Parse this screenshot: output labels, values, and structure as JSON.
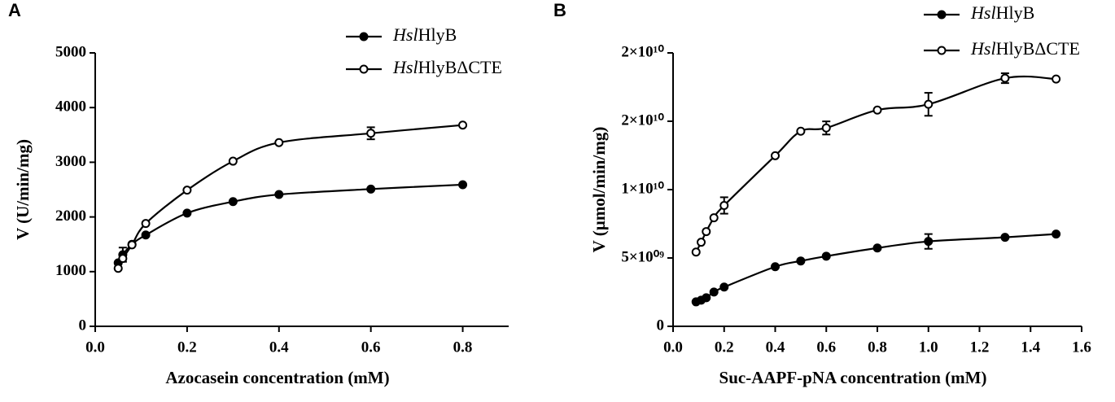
{
  "chart_data": [
    {
      "type": "scatter",
      "panel_label": "A",
      "xlabel": "Azocasein concentration (mM)",
      "ylabel": "V (U/min/mg)",
      "x": [
        0.05,
        0.06,
        0.08,
        0.11,
        0.2,
        0.3,
        0.4,
        0.6,
        0.8
      ],
      "xlim": [
        0,
        0.9
      ],
      "ylim": [
        0,
        5000
      ],
      "xticks": [
        {
          "value": 0,
          "label": "0.0"
        },
        0.2,
        0.4,
        0.6,
        0.8
      ],
      "yticks": [
        0,
        1000,
        2000,
        3000,
        4000,
        5000
      ],
      "series": [
        {
          "name": "HslHlyB",
          "marker": "filled",
          "color": "#000000",
          "values": [
            1160,
            1310,
            1500,
            1670,
            2070,
            2280,
            2410,
            2510,
            2590
          ],
          "errors": [
            null,
            130,
            null,
            null,
            null,
            null,
            null,
            null,
            null
          ]
        },
        {
          "name": "HslHlyBΔCTE",
          "marker": "open",
          "color": "#000000",
          "values": [
            1060,
            1240,
            1490,
            1880,
            2490,
            3020,
            3360,
            3530,
            3680
          ],
          "errors": [
            null,
            null,
            null,
            null,
            null,
            null,
            null,
            110,
            null
          ]
        }
      ]
    },
    {
      "type": "scatter",
      "panel_label": "B",
      "xlabel": "Suc-AAPF-pNA concentration (mM)",
      "ylabel": "V (µmol/min/mg)",
      "x": [
        0.09,
        0.11,
        0.13,
        0.16,
        0.2,
        0.4,
        0.5,
        0.6,
        0.8,
        1.0,
        1.3,
        1.5
      ],
      "xlim": [
        0,
        1.6
      ],
      "ylim": [
        0,
        20000000000
      ],
      "xticks": [
        {
          "value": 0,
          "label": "0.0"
        },
        0.2,
        0.4,
        0.6,
        0.8,
        {
          "value": 1,
          "label": "1.0"
        },
        1.2,
        1.4,
        1.6
      ],
      "yticks": [
        0,
        {
          "value": 5000000000,
          "label": "5×10⁰⁹"
        },
        {
          "value": 10000000000,
          "label": "1×10¹⁰"
        },
        {
          "value": 15000000000,
          "label": "2×10¹⁰"
        },
        {
          "value": 20000000000,
          "label": "2×10¹⁰"
        }
      ],
      "series": [
        {
          "name": "HslHlyB",
          "marker": "filled",
          "color": "#000000",
          "values": [
            1790000000,
            1910000000,
            2090000000,
            2510000000,
            2870000000,
            4360000000,
            4780000000,
            5130000000,
            5730000000,
            6210000000,
            6510000000,
            6750000000
          ],
          "errors": [
            null,
            null,
            null,
            null,
            null,
            null,
            null,
            null,
            null,
            540000000,
            null,
            null
          ]
        },
        {
          "name": "HslHlyBΔCTE",
          "marker": "open",
          "color": "#000000",
          "values": [
            5430000000,
            6150000000,
            6930000000,
            7940000000,
            8840000000,
            12480000000,
            14270000000,
            14510000000,
            15820000000,
            16240000000,
            18150000000,
            18090000000
          ],
          "errors": [
            null,
            null,
            null,
            null,
            600000000,
            null,
            null,
            480000000,
            null,
            840000000,
            360000000,
            null
          ]
        }
      ]
    }
  ]
}
